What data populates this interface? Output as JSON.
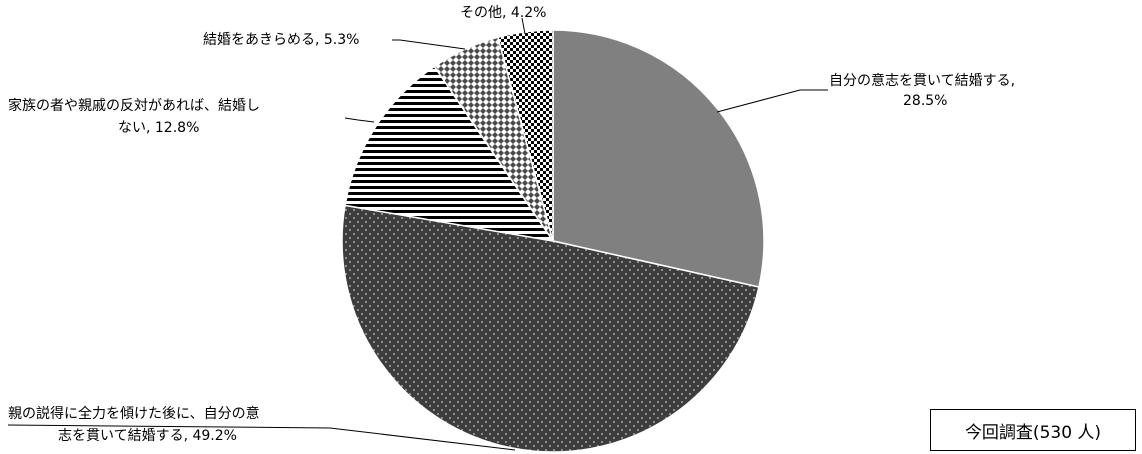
{
  "chart_data": {
    "type": "pie",
    "title": "",
    "slices": [
      {
        "label_line1": "自分の意志を貫いて結婚する,",
        "label_line2": "28.5%",
        "value": 28.5,
        "pattern": "solid-gray",
        "color": "#808080"
      },
      {
        "label_line1": "親の説得に全力を傾けた後に、自分の意",
        "label_line2": "志を貫いて結婚する, 49.2%",
        "value": 49.2,
        "pattern": "dots-on-dark",
        "color": "#3d3d3d"
      },
      {
        "label_line1": "家族の者や親戚の反対があれば、結婚し",
        "label_line2": "ない, 12.8%",
        "value": 12.8,
        "pattern": "horizontal-stripes",
        "color": "#000000"
      },
      {
        "label_line1": "結婚をあきらめる, 5.3%",
        "label_line2": "",
        "value": 5.3,
        "pattern": "diamond-check",
        "color": "#555555"
      },
      {
        "label_line1": "その他, 4.2%",
        "label_line2": "",
        "value": 4.2,
        "pattern": "small-checker",
        "color": "#000000"
      }
    ],
    "legend": null
  },
  "note": "今回調査(530 人)"
}
